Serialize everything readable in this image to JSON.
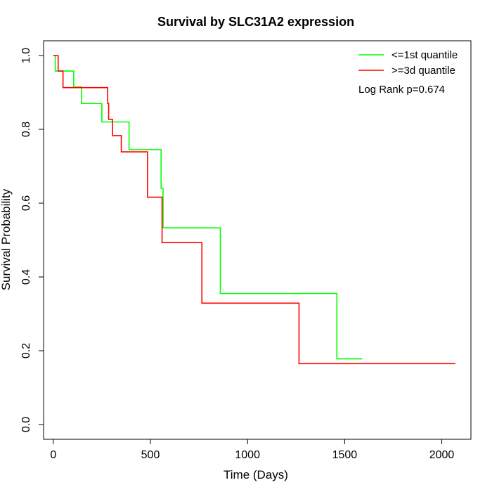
{
  "chart_data": {
    "type": "line",
    "title": "Survival by SLC31A2 expression",
    "xlabel": "Time (Days)",
    "ylabel": "Survival Probability",
    "xlim": [
      -50,
      2150
    ],
    "ylim": [
      -0.04,
      1.04
    ],
    "x_ticks": [
      0,
      500,
      1000,
      1500,
      2000
    ],
    "y_ticks": [
      0.0,
      0.2,
      0.4,
      0.6,
      0.8,
      1.0
    ],
    "x_tick_labels": [
      "0",
      "500",
      "1000",
      "1500",
      "2000"
    ],
    "y_tick_labels": [
      "0.0",
      "0.2",
      "0.4",
      "0.6",
      "0.8",
      "1.0"
    ],
    "grid": false,
    "legend_position": "top-right",
    "annotation": "Log Rank p=0.674",
    "series": [
      {
        "name": "<=1st quantile",
        "color": "#00ff00",
        "steps": [
          {
            "x": 0,
            "y": 1.0
          },
          {
            "x": 10,
            "y": 0.958
          },
          {
            "x": 105,
            "y": 0.915
          },
          {
            "x": 145,
            "y": 0.87
          },
          {
            "x": 250,
            "y": 0.82
          },
          {
            "x": 390,
            "y": 0.745
          },
          {
            "x": 555,
            "y": 0.64
          },
          {
            "x": 565,
            "y": 0.533
          },
          {
            "x": 860,
            "y": 0.355
          },
          {
            "x": 1460,
            "y": 0.178
          },
          {
            "x": 1590,
            "y": 0.178
          }
        ]
      },
      {
        "name": ">=3d quantile",
        "color": "#ff0000",
        "steps": [
          {
            "x": 0,
            "y": 1.0
          },
          {
            "x": 25,
            "y": 0.958
          },
          {
            "x": 50,
            "y": 0.913
          },
          {
            "x": 280,
            "y": 0.87
          },
          {
            "x": 285,
            "y": 0.827
          },
          {
            "x": 305,
            "y": 0.783
          },
          {
            "x": 350,
            "y": 0.739
          },
          {
            "x": 485,
            "y": 0.616
          },
          {
            "x": 560,
            "y": 0.493
          },
          {
            "x": 765,
            "y": 0.329
          },
          {
            "x": 1265,
            "y": 0.165
          },
          {
            "x": 2070,
            "y": 0.165
          }
        ]
      }
    ]
  }
}
